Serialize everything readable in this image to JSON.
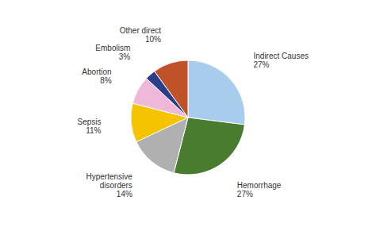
{
  "chart_data": {
    "type": "pie",
    "categories": [
      "Indirect Causes",
      "Hemorrhage",
      "Hypertensive\ndisorders",
      "Sepsis",
      "Abortion",
      "Embolism",
      "Other direct"
    ],
    "values": [
      27,
      27,
      14,
      11,
      8,
      3,
      10
    ],
    "value_labels": [
      "27%",
      "27%",
      "14%",
      "11%",
      "8%",
      "3%",
      "10%"
    ],
    "colors": [
      "#a8cceb",
      "#4a7c2f",
      "#b0b0b0",
      "#f5c300",
      "#f0b8d8",
      "#2a3e8c",
      "#c0522a"
    ],
    "data_labels": true
  }
}
